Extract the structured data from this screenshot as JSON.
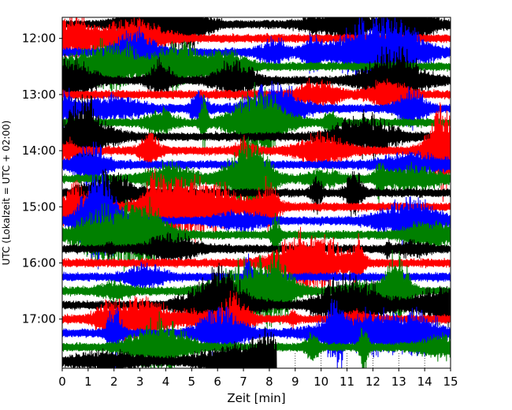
{
  "chart_data": {
    "type": "line",
    "title": "",
    "xlabel": "Zeit  [min]",
    "ylabel": "UTC (Lokalzeit = UTC + 02:00)",
    "xlim": [
      0,
      15
    ],
    "x_ticks": [
      "0",
      "1",
      "2",
      "3",
      "4",
      "5",
      "6",
      "7",
      "8",
      "9",
      "10",
      "11",
      "12",
      "13",
      "14",
      "15"
    ],
    "y_ticks": [
      "12:00",
      "13:00",
      "14:00",
      "15:00",
      "16:00",
      "17:00"
    ],
    "trace_colors": [
      "#000000",
      "#ff0000",
      "#0000ff",
      "#008000"
    ],
    "traces": [
      {
        "start": "11:45",
        "duration_min": 15
      },
      {
        "start": "12:00",
        "duration_min": 15
      },
      {
        "start": "12:15",
        "duration_min": 15
      },
      {
        "start": "12:30",
        "duration_min": 15
      },
      {
        "start": "12:45",
        "duration_min": 15
      },
      {
        "start": "13:00",
        "duration_min": 15
      },
      {
        "start": "13:15",
        "duration_min": 15
      },
      {
        "start": "13:30",
        "duration_min": 15
      },
      {
        "start": "13:45",
        "duration_min": 15
      },
      {
        "start": "14:00",
        "duration_min": 15
      },
      {
        "start": "14:15",
        "duration_min": 15
      },
      {
        "start": "14:30",
        "duration_min": 15
      },
      {
        "start": "14:45",
        "duration_min": 15
      },
      {
        "start": "15:00",
        "duration_min": 15
      },
      {
        "start": "15:15",
        "duration_min": 15
      },
      {
        "start": "15:30",
        "duration_min": 15
      },
      {
        "start": "15:45",
        "duration_min": 15
      },
      {
        "start": "16:00",
        "duration_min": 15
      },
      {
        "start": "16:15",
        "duration_min": 15
      },
      {
        "start": "16:30",
        "duration_min": 15
      },
      {
        "start": "16:45",
        "duration_min": 15
      },
      {
        "start": "17:00",
        "duration_min": 15
      },
      {
        "start": "17:15",
        "duration_min": 15
      },
      {
        "start": "17:30",
        "duration_min": 15
      },
      {
        "start": "17:45",
        "duration_min": 8.3
      }
    ],
    "grid": "dotted vertical lines in the empty region after the last trace"
  }
}
